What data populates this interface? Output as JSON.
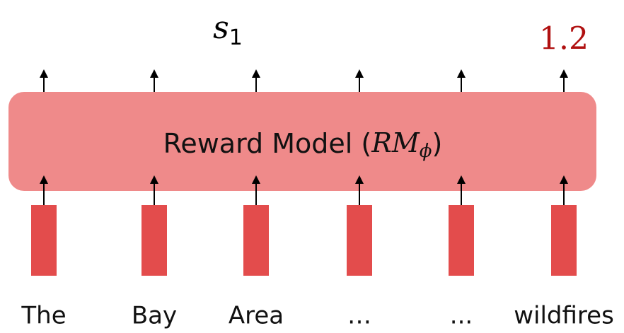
{
  "score": {
    "symbol": "s",
    "subscript": "1"
  },
  "reward_value": 1.2,
  "model": {
    "label": "Reward Model (",
    "symbol": "RM",
    "subscript": "ϕ",
    "close": ")"
  },
  "tokens": [
    "The",
    "Bay",
    "Area",
    "…",
    "...",
    "wildfires"
  ]
}
